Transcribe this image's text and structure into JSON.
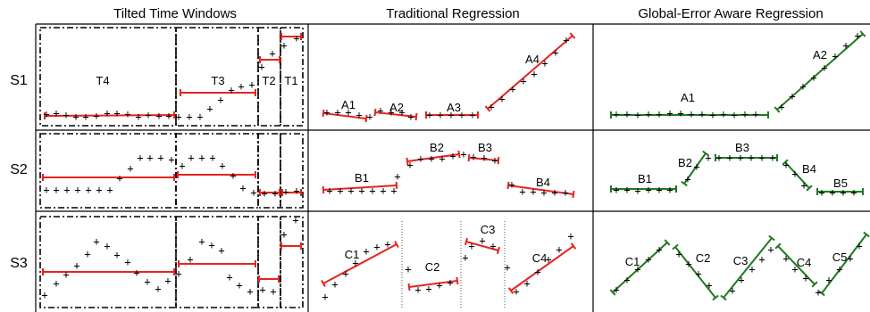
{
  "headers": {
    "col1": "Tilted Time Windows",
    "col2": "Traditional Regression",
    "col3": "Global-Error Aware Regression"
  },
  "rows": [
    "S1",
    "S2",
    "S3"
  ],
  "windows": [
    "T4",
    "T3",
    "T2",
    "T1"
  ],
  "traditional": {
    "s1": [
      "A1",
      "A2",
      "A3",
      "A4"
    ],
    "s2": [
      "B1",
      "B2",
      "B3",
      "B4"
    ],
    "s3": [
      "C1",
      "C2",
      "C3",
      "C4"
    ]
  },
  "global": {
    "s1": [
      "A1",
      "A2"
    ],
    "s2": [
      "B1",
      "B2",
      "B3",
      "B4",
      "B5"
    ],
    "s3": [
      "C1",
      "C2",
      "C3",
      "C4",
      "C5"
    ]
  },
  "point_marker": "+",
  "colors": {
    "traditional": "#e8231f",
    "global": "#1f7a1f",
    "window_segment": "#e8231f",
    "grid": "#000000"
  }
}
